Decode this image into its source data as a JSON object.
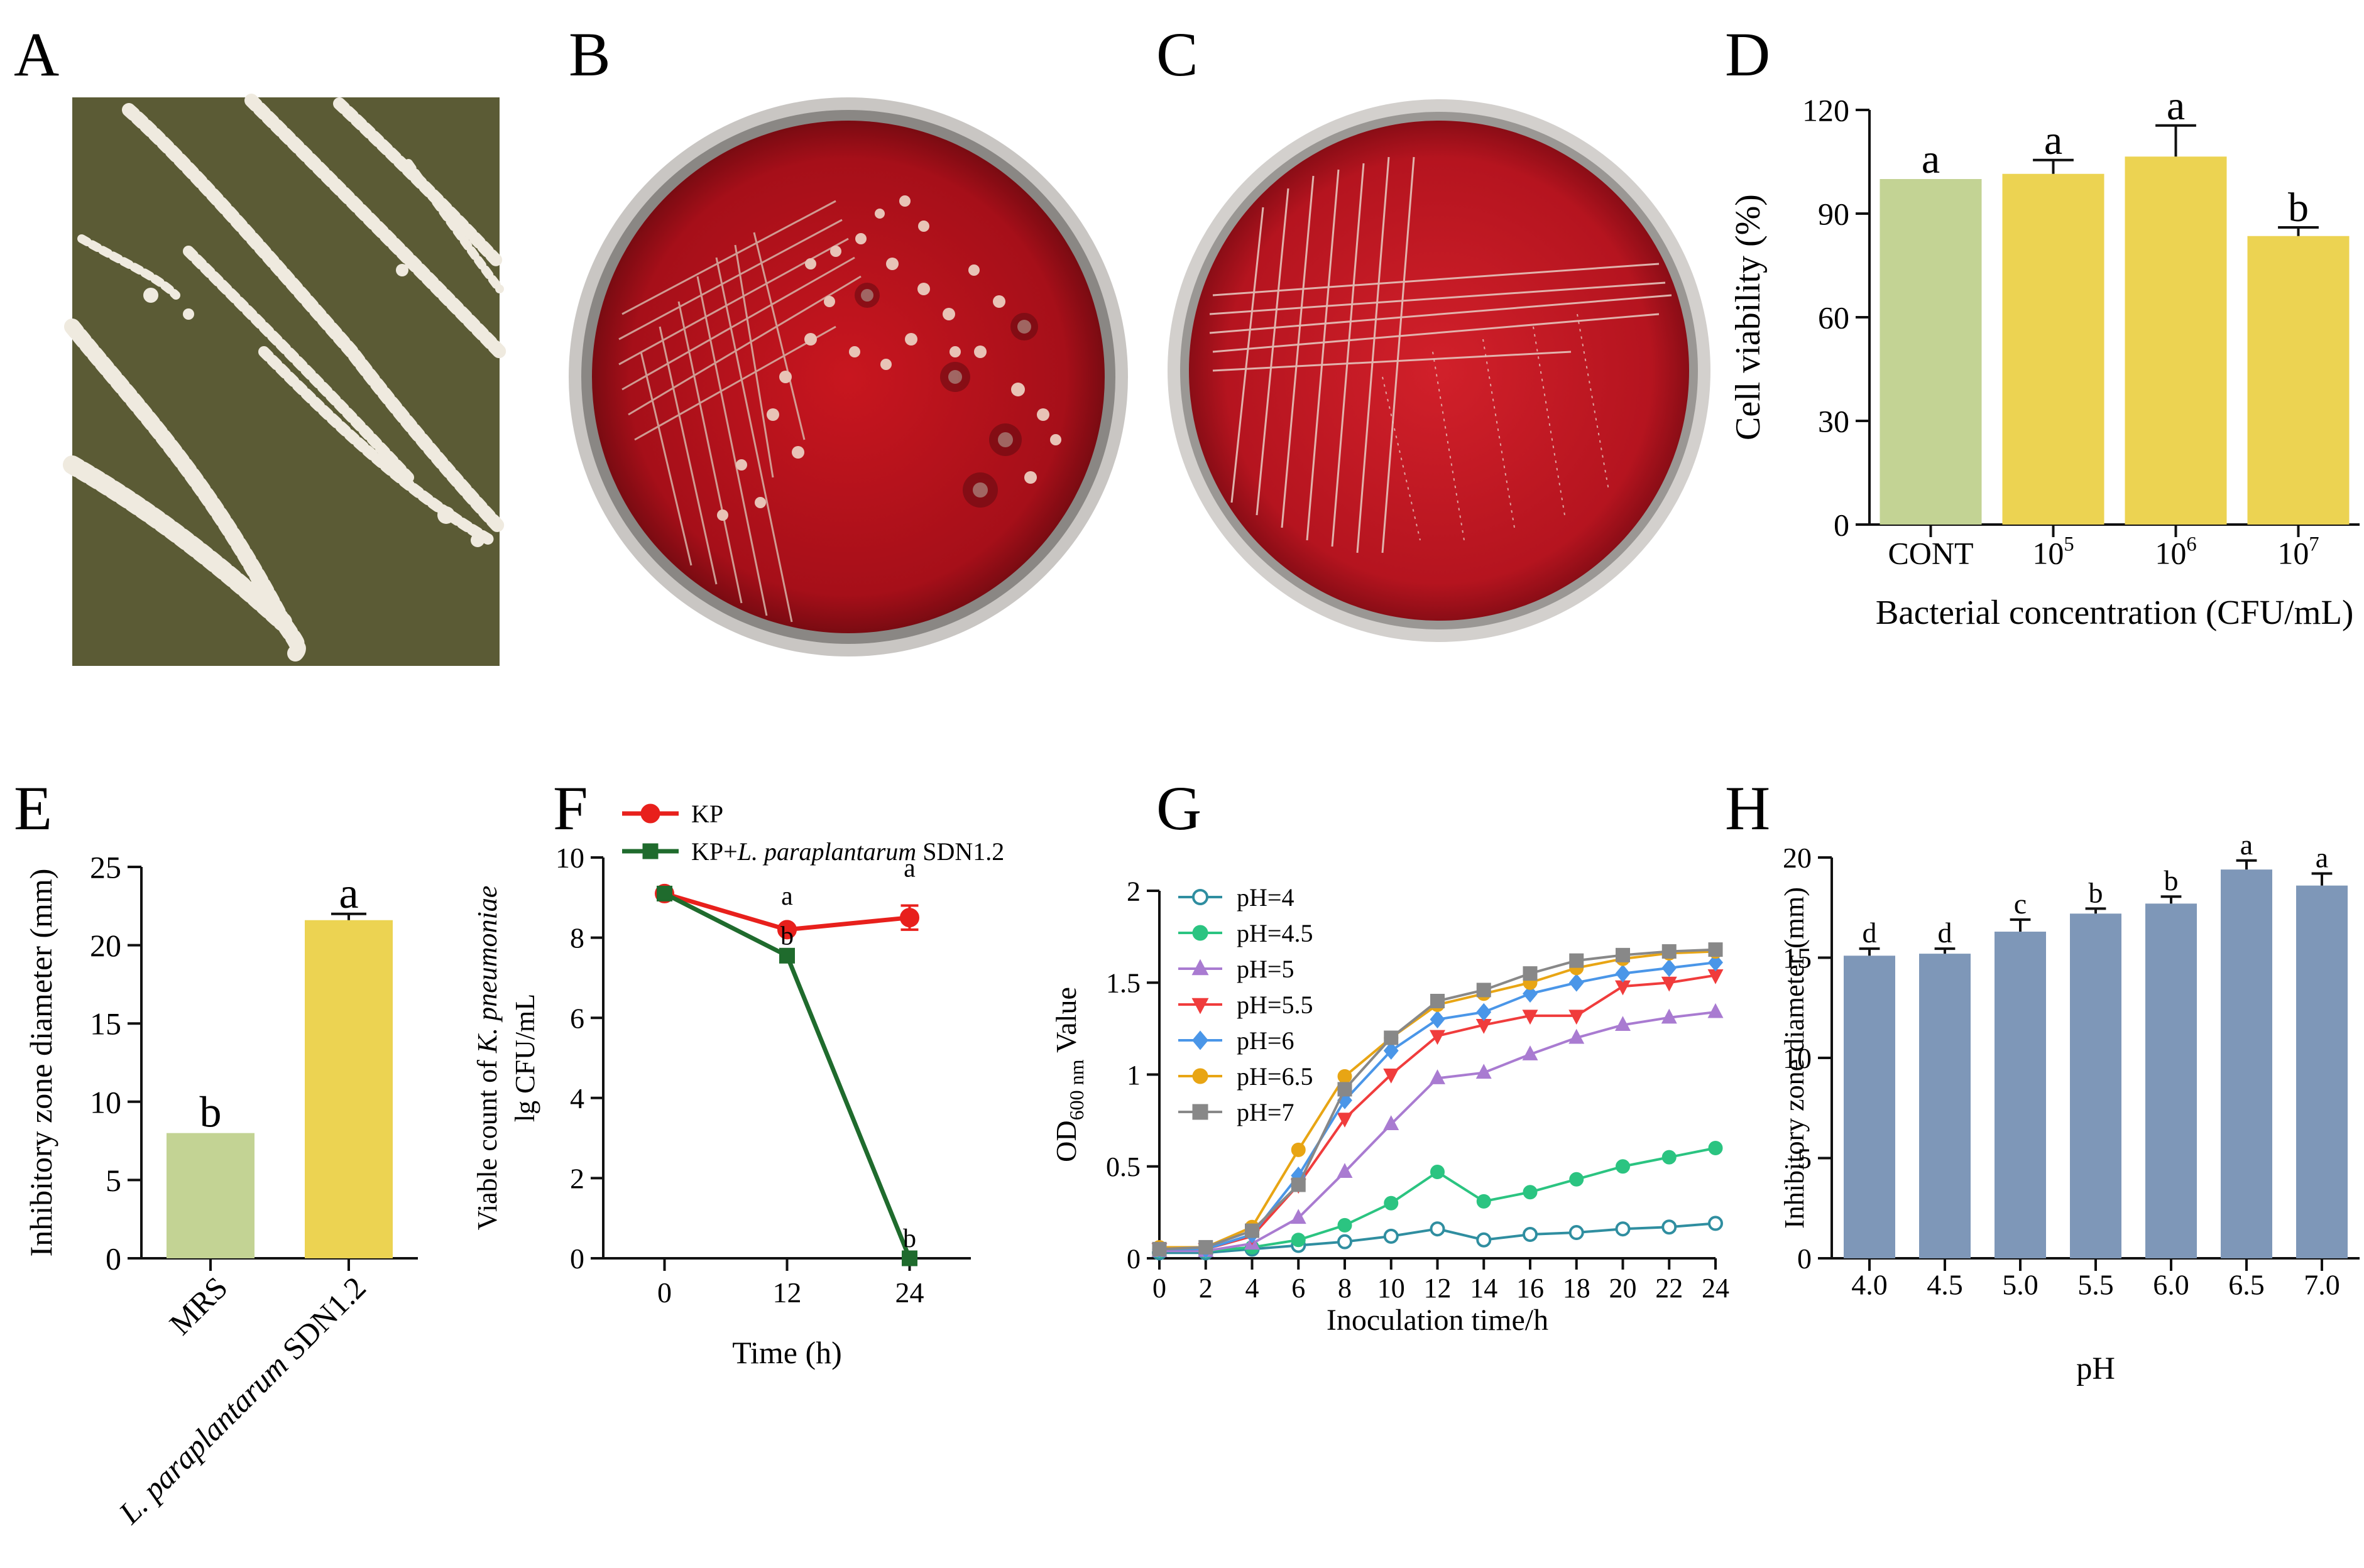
{
  "panel_letters": [
    "A",
    "B",
    "C",
    "D",
    "E",
    "F",
    "G",
    "H"
  ],
  "colors": {
    "green": "#c3d394",
    "yellow": "#ecd352",
    "steel_blue": "#7e97b8",
    "agar_olive": "#5b5b35",
    "blood_agar": "#b3121d",
    "kp_red": "#e8201c",
    "kp_lp_green": "#1f6b2d"
  },
  "photos": [
    {
      "panel": "A",
      "content": "white-colony-streaks-on-olive-agar"
    },
    {
      "panel": "B",
      "content": "colonies-on-blood-agar-plate"
    },
    {
      "panel": "C",
      "content": "streaked-blood-agar-plate"
    }
  ],
  "chart_data": [
    {
      "panel": "D",
      "type": "bar",
      "categories": [
        "CONT",
        "10",
        "10",
        "10"
      ],
      "category_exponents": [
        "",
        "5",
        "6",
        "7"
      ],
      "values": [
        100,
        101.5,
        106.5,
        83.5
      ],
      "errors": [
        0,
        4,
        9,
        2.5
      ],
      "letters": [
        "a",
        "a",
        "a",
        "b"
      ],
      "colors": [
        "#c3d394",
        "#ecd352",
        "#ecd352",
        "#ecd352"
      ],
      "xlabel": "Bacterial concentration (CFU/mL)",
      "ylabel": "Cell viability (%)",
      "ylim": [
        0,
        120
      ],
      "yticks": [
        0,
        30,
        60,
        90,
        120
      ]
    },
    {
      "panel": "E",
      "type": "bar",
      "categories": [
        "MRS",
        "L. paraplantarum SDN1.2"
      ],
      "category_italic": [
        "",
        "L. paraplantarum"
      ],
      "category_plain": [
        "MRS",
        " SDN1.2"
      ],
      "values": [
        8,
        21.6
      ],
      "errors": [
        0,
        0.4
      ],
      "letters": [
        "b",
        "a"
      ],
      "colors": [
        "#c3d394",
        "#ecd352"
      ],
      "xlabel": "",
      "ylabel": "Inhibitory zone diameter (mm)",
      "ylim": [
        0,
        25
      ],
      "yticks": [
        0,
        5,
        10,
        15,
        20,
        25
      ]
    },
    {
      "panel": "F",
      "type": "line",
      "x": [
        0,
        12,
        24
      ],
      "series": [
        {
          "name": "KP",
          "name_italic": "",
          "name_suffix": "",
          "values": [
            9.1,
            8.2,
            8.5
          ],
          "errors": [
            0,
            0,
            0.3
          ],
          "letters": [
            "",
            "a",
            "a"
          ],
          "color": "#e8201c",
          "marker": "circle"
        },
        {
          "name": "KP+",
          "name_italic": "L. paraplantarum",
          "name_suffix": " SDN1.2",
          "values": [
            9.1,
            7.55,
            0
          ],
          "errors": [
            0,
            0,
            0
          ],
          "letters": [
            "",
            "b",
            "b"
          ],
          "color": "#1f6b2d",
          "marker": "square"
        }
      ],
      "xlabel": "Time (h)",
      "ylabel_line1_plain": "Viable count of ",
      "ylabel_line1_italic": "K. pneumoniae",
      "ylabel_line2": "lg CFU/mL",
      "xlim": [
        -6,
        30
      ],
      "ylim": [
        0,
        10
      ],
      "xticks": [
        0,
        12,
        24
      ],
      "yticks": [
        0,
        2,
        4,
        6,
        8,
        10
      ],
      "legend": "top-left"
    },
    {
      "panel": "G",
      "type": "line",
      "x": [
        0,
        2,
        4,
        6,
        8,
        10,
        12,
        14,
        16,
        18,
        20,
        22,
        24
      ],
      "series": [
        {
          "name": "pH=4",
          "color": "#2f8ea0",
          "marker": "circle-open",
          "values": [
            0.03,
            0.03,
            0.05,
            0.07,
            0.09,
            0.12,
            0.16,
            0.1,
            0.13,
            0.14,
            0.16,
            0.17,
            0.19
          ]
        },
        {
          "name": "pH=4.5",
          "color": "#2bc481",
          "marker": "circle",
          "values": [
            0.04,
            0.04,
            0.06,
            0.1,
            0.18,
            0.3,
            0.47,
            0.31,
            0.36,
            0.43,
            0.5,
            0.55,
            0.6
          ]
        },
        {
          "name": "pH=5",
          "color": "#a97bd1",
          "marker": "triangle-up",
          "values": [
            0.04,
            0.04,
            0.08,
            0.22,
            0.47,
            0.73,
            0.98,
            1.01,
            1.11,
            1.2,
            1.27,
            1.31,
            1.34
          ]
        },
        {
          "name": "pH=5.5",
          "color": "#f03c3c",
          "marker": "triangle-down",
          "values": [
            0.05,
            0.05,
            0.12,
            0.4,
            0.76,
            1.0,
            1.21,
            1.27,
            1.32,
            1.32,
            1.48,
            1.5,
            1.54
          ]
        },
        {
          "name": "pH=6",
          "color": "#4a96e8",
          "marker": "diamond",
          "values": [
            0.05,
            0.05,
            0.13,
            0.45,
            0.86,
            1.13,
            1.3,
            1.34,
            1.44,
            1.5,
            1.55,
            1.58,
            1.61
          ]
        },
        {
          "name": "pH=6.5",
          "color": "#e8a514",
          "marker": "circle",
          "values": [
            0.06,
            0.06,
            0.17,
            0.59,
            0.99,
            1.2,
            1.38,
            1.44,
            1.5,
            1.58,
            1.63,
            1.66,
            1.67
          ]
        },
        {
          "name": "pH=7",
          "color": "#888888",
          "marker": "square",
          "values": [
            0.05,
            0.06,
            0.15,
            0.4,
            0.92,
            1.2,
            1.4,
            1.46,
            1.55,
            1.62,
            1.65,
            1.67,
            1.68
          ]
        }
      ],
      "xlabel": "Inoculation time/h",
      "ylabel_prefix": "OD",
      "ylabel_subscript": "600 nm",
      "ylabel_suffix": " Value",
      "xlim": [
        0,
        24
      ],
      "ylim": [
        0,
        2
      ],
      "xticks": [
        0,
        2,
        4,
        6,
        8,
        10,
        12,
        14,
        16,
        18,
        20,
        22,
        24
      ],
      "yticks": [
        "0",
        "0.5",
        "1",
        "1.5",
        "2"
      ],
      "ytick_values": [
        0,
        0.5,
        1,
        1.5,
        2
      ],
      "legend": "top-left"
    },
    {
      "panel": "H",
      "type": "bar",
      "categories": [
        "4.0",
        "4.5",
        "5.0",
        "5.5",
        "6.0",
        "6.5",
        "7.0"
      ],
      "values": [
        15.1,
        15.2,
        16.3,
        17.2,
        17.7,
        19.4,
        18.6
      ],
      "errors": [
        0.35,
        0.25,
        0.6,
        0.25,
        0.35,
        0.45,
        0.6
      ],
      "letters": [
        "d",
        "d",
        "c",
        "b",
        "b",
        "a",
        "a"
      ],
      "colors": [
        "#7e97b8",
        "#7e97b8",
        "#7e97b8",
        "#7e97b8",
        "#7e97b8",
        "#7e97b8",
        "#7e97b8"
      ],
      "xlabel": "pH",
      "ylabel": "Inhibitory zone diameter (mm)",
      "ylim": [
        0,
        20
      ],
      "yticks": [
        0,
        5,
        10,
        15,
        20
      ]
    }
  ]
}
